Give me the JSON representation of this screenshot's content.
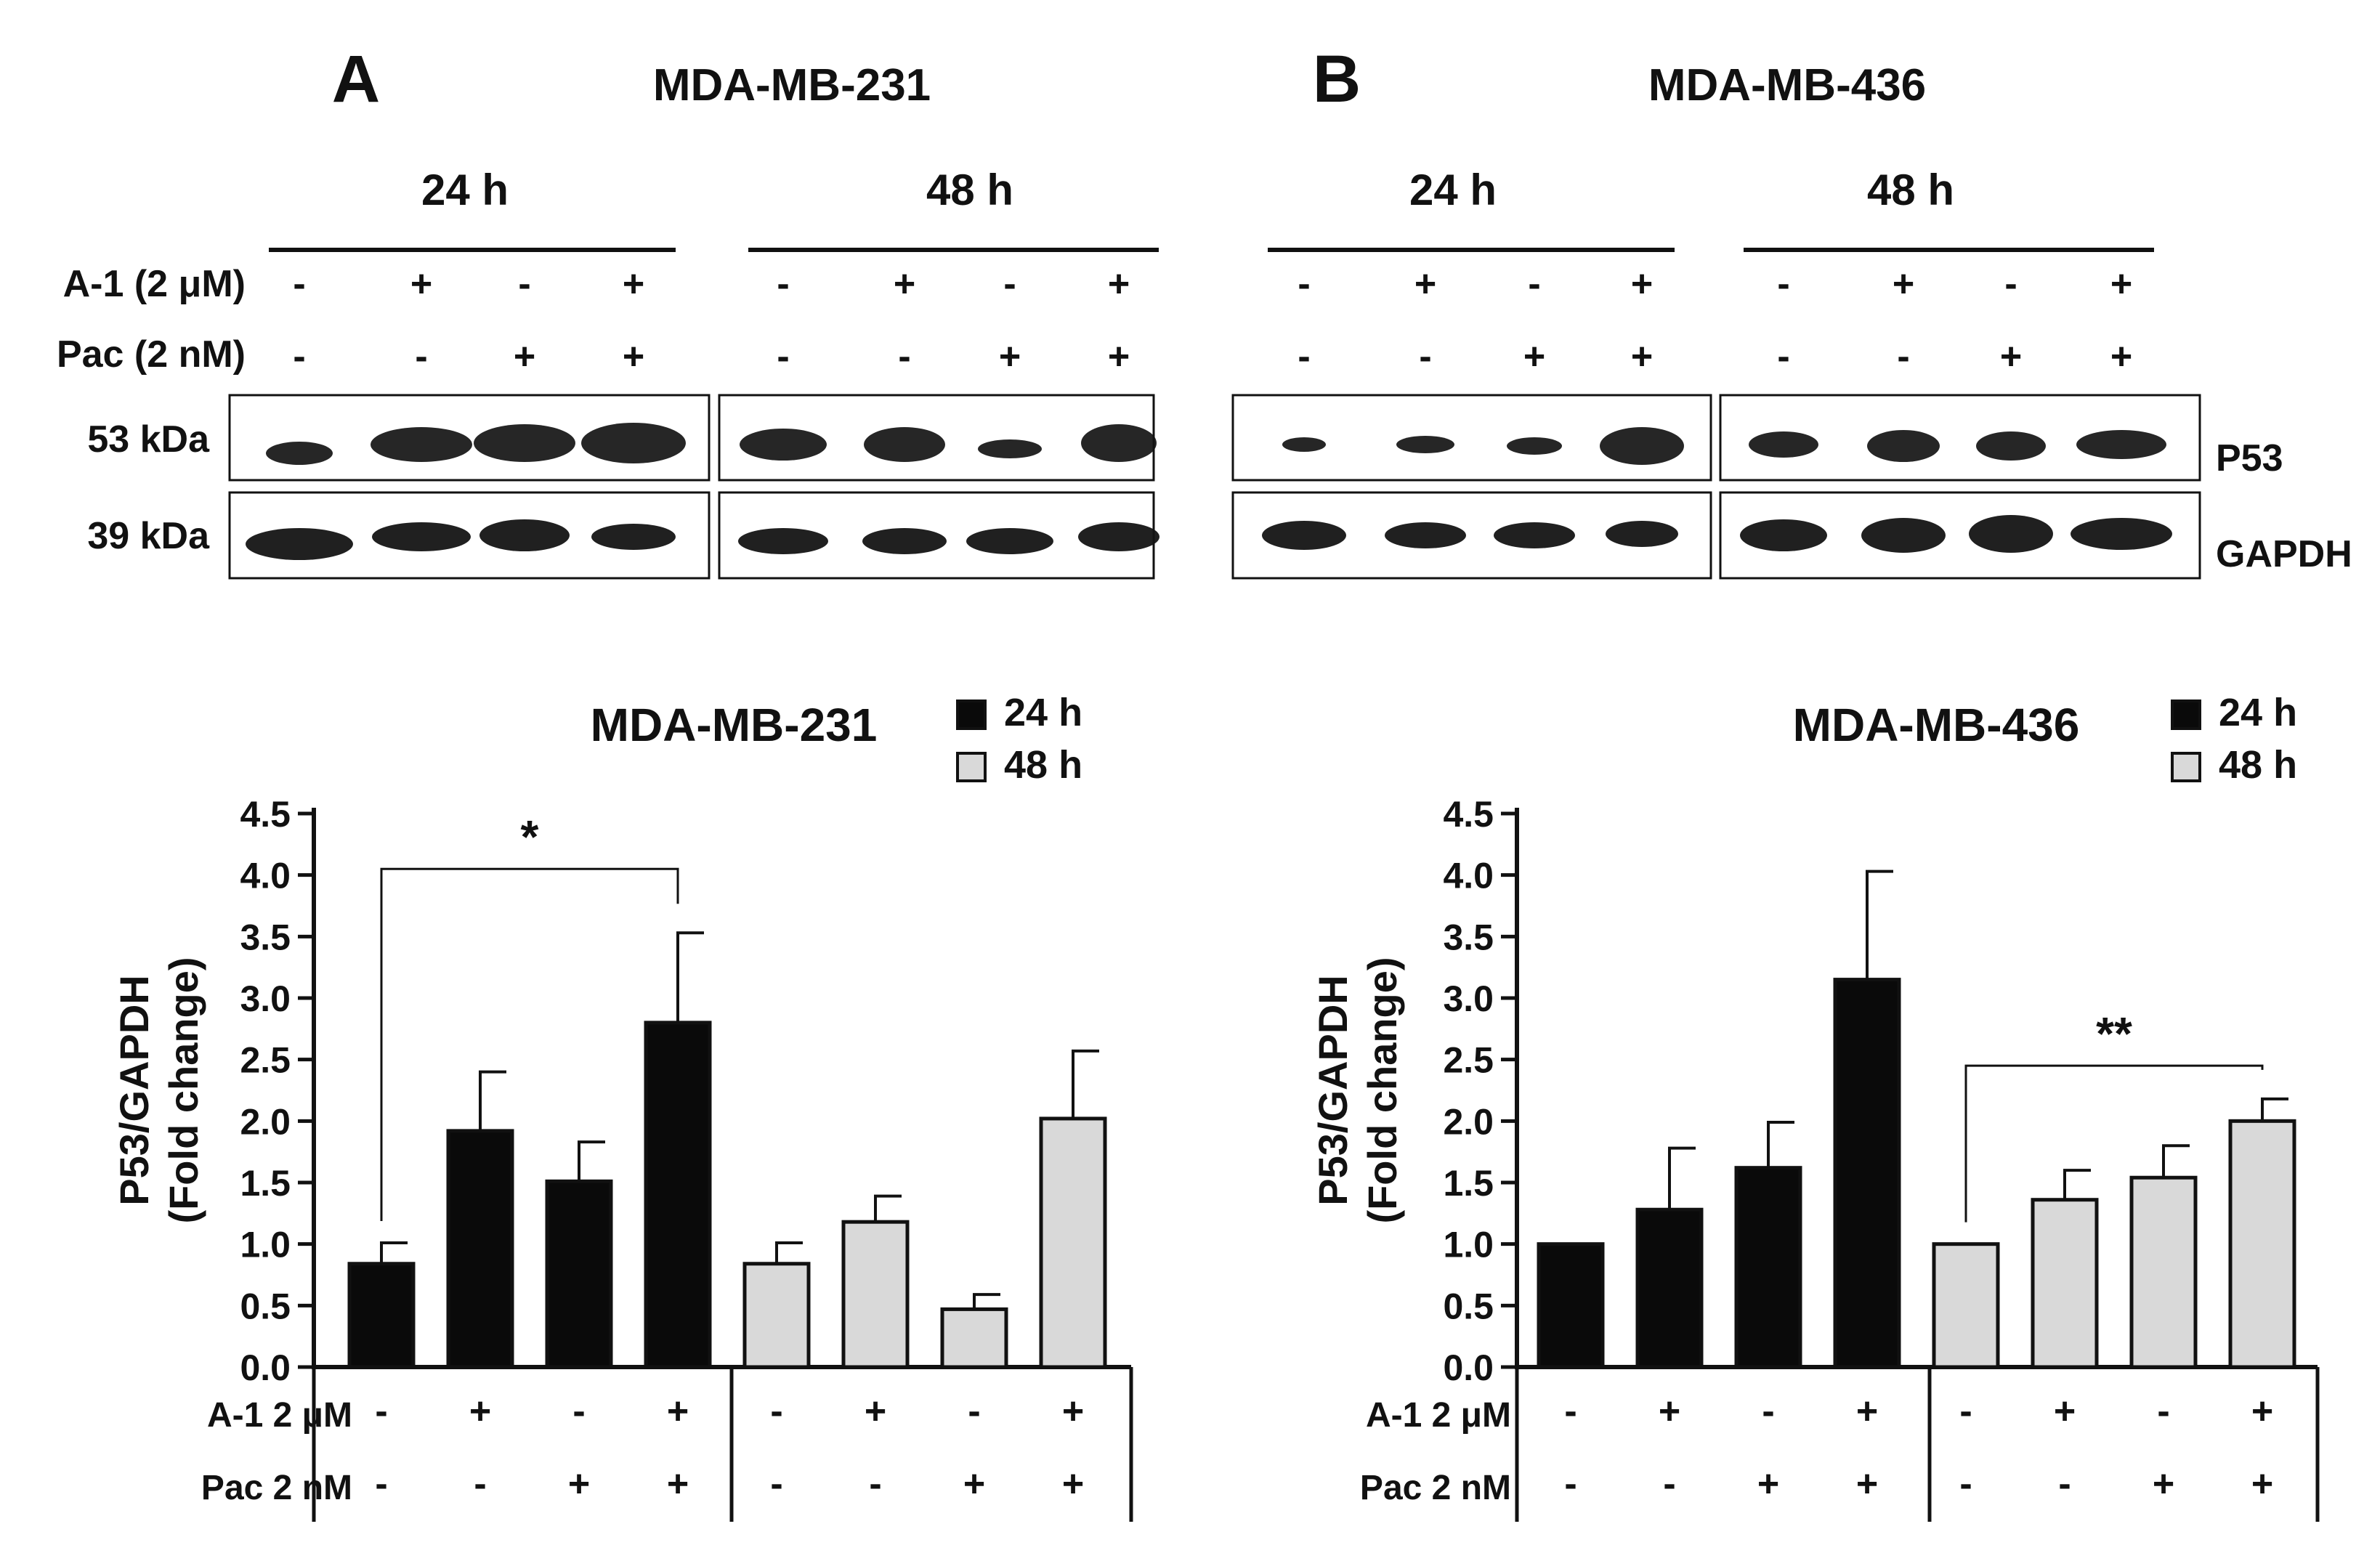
{
  "colors": {
    "bar_24h": "#0a0a0a",
    "bar_48h": "#d9d9d9",
    "line": "#111111",
    "blot_band": "#141414",
    "background": "#ffffff"
  },
  "blots": {
    "row_labels": {
      "a1": "A-1 (2 μM)",
      "pac": "Pac (2 nM)"
    },
    "kda_labels": [
      "53 kDa",
      "39 kDa"
    ],
    "protein_labels": [
      "P53",
      "GAPDH"
    ],
    "panels": [
      {
        "letter": "A",
        "cell_line": "MDA-MB-231",
        "groups": [
          {
            "time": "24 h",
            "a1": [
              "-",
              "+",
              "-",
              "+"
            ],
            "pac": [
              "-",
              "-",
              "+",
              "+"
            ]
          },
          {
            "time": "48 h",
            "a1": [
              "-",
              "+",
              "-",
              "+"
            ],
            "pac": [
              "-",
              "-",
              "+",
              "+"
            ]
          }
        ]
      },
      {
        "letter": "B",
        "cell_line": "MDA-MB-436",
        "groups": [
          {
            "time": "24 h",
            "a1": [
              "-",
              "+",
              "-",
              "+"
            ],
            "pac": [
              "-",
              "-",
              "+",
              "+"
            ]
          },
          {
            "time": "48 h",
            "a1": [
              "-",
              "+",
              "-",
              "+"
            ],
            "pac": [
              "-",
              "-",
              "+",
              "+"
            ]
          }
        ]
      }
    ]
  },
  "chart_data": [
    {
      "type": "bar",
      "title": "MDA-MB-231",
      "ylabel_lines": [
        "P53/GAPDH",
        "(Fold change)"
      ],
      "ylim": [
        0,
        4.5
      ],
      "yticks": [
        "0.0",
        "0.5",
        "1.0",
        "1.5",
        "2.0",
        "2.5",
        "3.0",
        "3.5",
        "4.0",
        "4.5"
      ],
      "legend": [
        "24 h",
        "48 h"
      ],
      "legend_position": "top-right",
      "treatment_labels": {
        "a1": "A-1 2 μM",
        "pac": "Pac 2 nM"
      },
      "a1": [
        "-",
        "+",
        "-",
        "+",
        "-",
        "+",
        "-",
        "+"
      ],
      "pac": [
        "-",
        "-",
        "+",
        "+",
        "-",
        "-",
        "+",
        "+"
      ],
      "series": [
        {
          "name": "24 h",
          "values": [
            0.84,
            1.92,
            1.51,
            2.8
          ],
          "errors": [
            0.17,
            0.48,
            0.32,
            0.73
          ]
        },
        {
          "name": "48 h",
          "values": [
            0.84,
            1.18,
            0.47,
            2.02
          ],
          "errors": [
            0.17,
            0.21,
            0.12,
            0.55
          ]
        }
      ],
      "significance": [
        {
          "from": 0,
          "to": 3,
          "label": "*"
        }
      ]
    },
    {
      "type": "bar",
      "title": "MDA-MB-436",
      "ylabel_lines": [
        "P53/GAPDH",
        "(Fold change)"
      ],
      "ylim": [
        0,
        4.5
      ],
      "yticks": [
        "0.0",
        "0.5",
        "1.0",
        "1.5",
        "2.0",
        "2.5",
        "3.0",
        "3.5",
        "4.0",
        "4.5"
      ],
      "legend": [
        "24 h",
        "48 h"
      ],
      "legend_position": "top-right",
      "treatment_labels": {
        "a1": "A-1 2 μM",
        "pac": "Pac 2 nM"
      },
      "a1": [
        "-",
        "+",
        "-",
        "+",
        "-",
        "+",
        "-",
        "+"
      ],
      "pac": [
        "-",
        "-",
        "+",
        "+",
        "-",
        "-",
        "+",
        "+"
      ],
      "series": [
        {
          "name": "24 h",
          "values": [
            1.0,
            1.28,
            1.62,
            3.15
          ],
          "errors": [
            0,
            0.5,
            0.37,
            0.88
          ]
        },
        {
          "name": "48 h",
          "values": [
            1.0,
            1.36,
            1.54,
            2.0
          ],
          "errors": [
            0,
            0.24,
            0.26,
            0.18
          ]
        }
      ],
      "significance": [
        {
          "from": 4,
          "to": 7,
          "label": "**"
        }
      ]
    }
  ]
}
